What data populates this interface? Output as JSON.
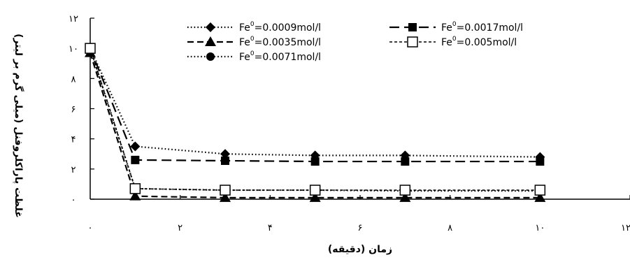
{
  "chart_data": {
    "type": "line",
    "xlabel": "زمان (دقیقه)",
    "ylabel": "غلظت پاراکلروفنل (میلی گرم بر لیتر)",
    "xlim": [
      0,
      12
    ],
    "ylim": [
      0,
      12
    ],
    "x_ticks": [
      0,
      2,
      4,
      6,
      8,
      10,
      12
    ],
    "y_ticks": [
      0,
      2,
      4,
      6,
      8,
      10,
      12
    ],
    "x_tick_labels": [
      "۰",
      "۲",
      "۴",
      "۶",
      "۸",
      "۱۰",
      "۱۲"
    ],
    "y_tick_labels": [
      "۰",
      "۲",
      "۴",
      "۶",
      "۸",
      "۱۰",
      "۱۲"
    ],
    "grid": false,
    "legend_position": "top",
    "series": [
      {
        "name_prefix": "Fe",
        "name_sup": "0",
        "name_suffix": "=0.0009mol/l",
        "marker": "diamond",
        "dash": "dotted",
        "x": [
          0,
          1,
          3,
          5,
          7,
          10
        ],
        "y": [
          10,
          3.5,
          3.0,
          2.9,
          2.9,
          2.8
        ]
      },
      {
        "name_prefix": "Fe",
        "name_sup": "0",
        "name_suffix": "=0.0017mol/l",
        "marker": "square",
        "dash": "long-dash",
        "x": [
          0,
          1,
          3,
          5,
          7,
          10
        ],
        "y": [
          10,
          2.6,
          2.55,
          2.5,
          2.5,
          2.5
        ]
      },
      {
        "name_prefix": "Fe",
        "name_sup": "0",
        "name_suffix": "=0.0035mol/l",
        "marker": "triangle",
        "dash": "dash",
        "x": [
          0,
          1,
          3,
          5,
          7,
          10
        ],
        "y": [
          9.7,
          0.2,
          0.1,
          0.1,
          0.1,
          0.1
        ]
      },
      {
        "name_prefix": "Fe",
        "name_sup": "0",
        "name_suffix": "=0.005mol/l",
        "marker": "square-open",
        "dash": "short-dash",
        "x": [
          0,
          1,
          3,
          5,
          7,
          10
        ],
        "y": [
          10,
          0.7,
          0.6,
          0.6,
          0.6,
          0.6
        ]
      },
      {
        "name_prefix": "Fe",
        "name_sup": "0",
        "name_suffix": "=0.0071mol/l",
        "marker": "circle",
        "dash": "dotted",
        "x": [
          0,
          1,
          3,
          5,
          7,
          10
        ],
        "y": [
          10,
          0.7,
          0.6,
          0.6,
          0.55,
          0.55
        ]
      }
    ]
  }
}
